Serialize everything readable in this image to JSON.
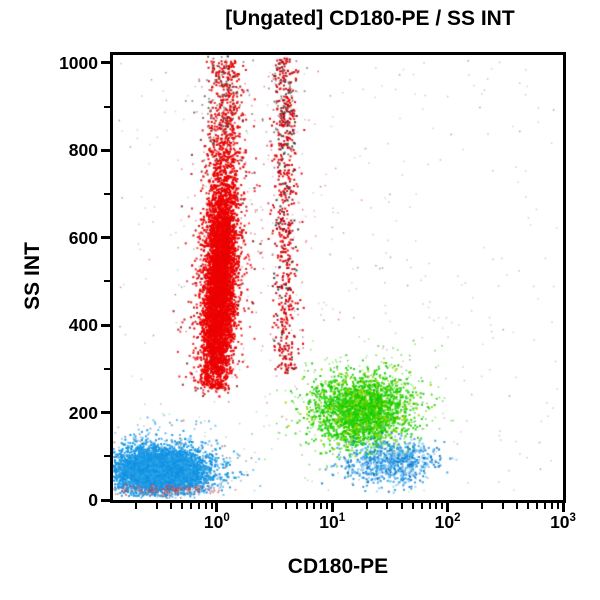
{
  "chart_data": {
    "type": "scatter",
    "title": "[Ungated] CD180-PE / SS INT",
    "xlabel": "CD180-PE",
    "ylabel": "SS INT",
    "x_scale": "log",
    "x_log_range": [
      -0.9,
      3.0
    ],
    "y_range": [
      0,
      1018
    ],
    "y_ticks_major": [
      {
        "value": 0,
        "label": "0"
      },
      {
        "value": 200,
        "label": "200"
      },
      {
        "value": 400,
        "label": "400"
      },
      {
        "value": 600,
        "label": "600"
      },
      {
        "value": 800,
        "label": "800"
      },
      {
        "value": 1000,
        "label": "1000"
      }
    ],
    "y_ticks_minor": [
      100,
      300,
      500,
      700,
      900
    ],
    "x_ticks_major": [
      {
        "value": 1,
        "base": "10",
        "exp": "0"
      },
      {
        "value": 10,
        "base": "10",
        "exp": "1"
      },
      {
        "value": 100,
        "base": "10",
        "exp": "2"
      },
      {
        "value": 1000,
        "base": "10",
        "exp": "3"
      }
    ],
    "x_ticks_minor": [
      0.2,
      0.3,
      0.4,
      0.5,
      0.6,
      0.7,
      0.8,
      0.9,
      2,
      3,
      4,
      5,
      6,
      7,
      8,
      9,
      20,
      30,
      40,
      50,
      60,
      70,
      80,
      90,
      200,
      300,
      400,
      500,
      600,
      700,
      800,
      900
    ],
    "random_seed": 1337,
    "populations": [
      {
        "name": "background-scatter",
        "count": 400,
        "size": 1.5,
        "alpha": 0.5,
        "x": {
          "dist": "uniform",
          "range_log": [
            -0.88,
            2.95
          ]
        },
        "ss": {
          "dist": "uniform",
          "range": [
            5,
            1005
          ]
        },
        "colors": [
          "#9a9a9a",
          "#8c8c8c",
          "#70c8b0",
          "#e070b0",
          "#4a4a4a",
          "#7fcc70",
          "#b0b0b0",
          "#9a9a9a"
        ]
      },
      {
        "name": "red-scatter-wide",
        "count": 140,
        "size": 1.5,
        "alpha": 0.55,
        "x": {
          "dist": "gauss",
          "mean_log": 0.3,
          "sigma_log": 0.38,
          "slope": 0.0
        },
        "ss": {
          "dist": "gauss",
          "mean": 620,
          "sigma": 240
        },
        "clip_ss": [
          180,
          1012
        ],
        "colors": [
          "#ee2030",
          "#d04060",
          "#c00000"
        ]
      },
      {
        "name": "green-fringe",
        "count": 480,
        "size": 1.5,
        "alpha": 0.7,
        "x": {
          "dist": "gauss",
          "mean_log": 1.27,
          "sigma_log": 0.32,
          "slope": 0.0
        },
        "ss": {
          "dist": "gauss",
          "mean": 205,
          "sigma": 68
        },
        "clip_ss": [
          40,
          370
        ],
        "colors": [
          "#1fcc00",
          "#4fd82a",
          "#86d860",
          "#2db818"
        ]
      },
      {
        "name": "green-monocytes",
        "count": 2300,
        "size": 2,
        "alpha": 0.9,
        "x": {
          "dist": "gauss",
          "mean_log": 1.26,
          "sigma_log": 0.2,
          "slope": 0.0
        },
        "ss": {
          "dist": "gauss",
          "mean": 205,
          "sigma": 40
        },
        "clip_ss": [
          95,
          320
        ],
        "colors": [
          "#17cc00",
          "#1fd400",
          "#2bd40a",
          "#9cd400",
          "#12c400"
        ]
      },
      {
        "name": "red-granulocyte-fringe",
        "count": 900,
        "size": 2,
        "alpha": 0.85,
        "x": {
          "dist": "gauss",
          "mean_log": 0.02,
          "sigma_log": 0.125,
          "slope": 0.0002
        },
        "ss": {
          "dist": "gauss",
          "mean": 500,
          "sigma": 195
        },
        "clip_ss": [
          235,
          1012
        ],
        "colors": [
          "#ee0000",
          "#d40000",
          "#b00000",
          "#ff3040",
          "#7a1020",
          "#ee0000"
        ]
      },
      {
        "name": "red-granulocyte-tail",
        "count": 620,
        "size": 2,
        "alpha": 0.95,
        "x": {
          "dist": "gauss",
          "mean_log": 0.05,
          "sigma_log": 0.075,
          "slope": 0.0002
        },
        "ss": {
          "dist": "uniform",
          "range": [
            580,
            1005
          ]
        },
        "colors": [
          "#ee0000",
          "#e60000",
          "#cc0000",
          "#ee0000"
        ]
      },
      {
        "name": "red-granulocyte-core",
        "count": 4800,
        "size": 2,
        "alpha": 1,
        "x": {
          "dist": "gauss",
          "mean_log": 0.02,
          "sigma_log": 0.065,
          "slope": 0.0002
        },
        "ss": {
          "dist": "gauss",
          "mean": 470,
          "sigma": 130
        },
        "clip_ss": [
          255,
          1000
        ],
        "colors": [
          "#ee0000",
          "#f20000",
          "#e60000"
        ]
      },
      {
        "name": "red-column-2",
        "count": 640,
        "size": 2,
        "alpha": 0.95,
        "x": {
          "dist": "gauss",
          "mean_log": 0.595,
          "sigma_log": 0.052,
          "slope": 0.0
        },
        "ss": {
          "dist": "uniform",
          "range": [
            290,
            1010
          ]
        },
        "colors": [
          "#ee0000",
          "#d00010",
          "#a00018",
          "#cc0000",
          "#3a3a3a",
          "#ee0000",
          "#e40008"
        ]
      },
      {
        "name": "dark-specks-top-col1",
        "count": 120,
        "size": 1.8,
        "alpha": 0.8,
        "x": {
          "dist": "gauss",
          "mean_log": 0.03,
          "sigma_log": 0.1,
          "slope": 0.0
        },
        "ss": {
          "dist": "gauss",
          "mean": 930,
          "sigma": 70
        },
        "clip_ss": [
          770,
          1015
        ],
        "colors": [
          "#555555",
          "#333333",
          "#787878",
          "#a06060"
        ]
      },
      {
        "name": "dark-specks-top-col2",
        "count": 90,
        "size": 1.8,
        "alpha": 0.8,
        "x": {
          "dist": "gauss",
          "mean_log": 0.59,
          "sigma_log": 0.075,
          "slope": 0.0
        },
        "ss": {
          "dist": "gauss",
          "mean": 920,
          "sigma": 85
        },
        "clip_ss": [
          740,
          1015
        ],
        "colors": [
          "#555555",
          "#333333",
          "#787878",
          "#a06060"
        ]
      },
      {
        "name": "blue-right-cluster",
        "count": 800,
        "size": 2,
        "alpha": 0.9,
        "x": {
          "dist": "gauss",
          "mean_log": 1.5,
          "sigma_log": 0.2,
          "slope": 0.0
        },
        "ss": {
          "dist": "gauss",
          "mean": 86,
          "sigma": 27
        },
        "clip_ss": [
          15,
          175
        ],
        "colors": [
          "#1e9be6",
          "#2a9ce8",
          "#79c2f2",
          "#0b72c8",
          "#9ed2f5",
          "#2f8fd8"
        ]
      },
      {
        "name": "blue-lymphocyte-fringe",
        "count": 800,
        "size": 1.8,
        "alpha": 0.8,
        "x": {
          "dist": "gauss",
          "mean_log": -0.48,
          "sigma_log": 0.3,
          "slope": 0.0
        },
        "ss": {
          "dist": "gauss",
          "mean": 72,
          "sigma": 45
        },
        "clip_ss": [
          4,
          210
        ],
        "colors": [
          "#1e9be6",
          "#3fabec",
          "#79c2f2",
          "#888888"
        ]
      },
      {
        "name": "blue-lymphocyte-core",
        "count": 4300,
        "size": 2,
        "alpha": 1,
        "x": {
          "dist": "gauss",
          "mean_log": -0.5,
          "sigma_log": 0.21,
          "slope": 0.0
        },
        "ss": {
          "dist": "gauss",
          "mean": 68,
          "sigma": 26
        },
        "clip_ss": [
          8,
          168
        ],
        "colors": [
          "#1e9be6",
          "#1795e4",
          "#2fa6ea",
          "#0f8fe0"
        ]
      },
      {
        "name": "red-debris-underline",
        "count": 160,
        "size": 1.5,
        "alpha": 0.7,
        "x": {
          "dist": "gauss",
          "mean_log": -0.44,
          "sigma_log": 0.24,
          "slope": 0.0
        },
        "ss": {
          "dist": "gauss",
          "mean": 24,
          "sigma": 6
        },
        "colors": [
          "#e84040",
          "#e06060",
          "#d83030"
        ]
      }
    ]
  },
  "colors": {
    "axis": "#000000",
    "background": "#ffffff",
    "red_population": "#ee0000",
    "green_population": "#1fcc00",
    "blue_population": "#1e9be6"
  }
}
